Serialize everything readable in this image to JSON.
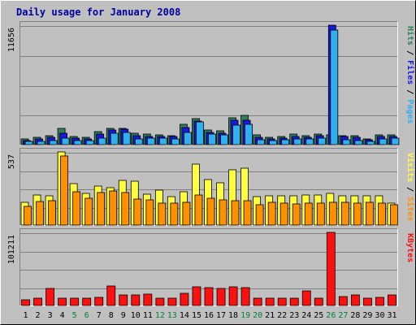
{
  "title": "Daily usage for January 2008",
  "colors": {
    "background": "#c0c0c0",
    "panel": "#c0c0c0",
    "title": "#0000a0",
    "hits": "#2f7f5f",
    "files": "#1818e0",
    "pages": "#30b0f0",
    "visits": "#ffff40",
    "sites": "#ff9000",
    "kbytes": "#ff1010",
    "weekend_label": "#008040",
    "weekday_label": "#000000"
  },
  "chart_data": [
    {
      "type": "bar",
      "panel": "hits-files-pages",
      "ymax_label": "11656",
      "ylim": [
        0,
        11656
      ],
      "legend": [
        {
          "name": "Pages",
          "color": "#30b0f0"
        },
        {
          "name": "Files",
          "color": "#1818e0"
        },
        {
          "name": "Hits",
          "color": "#2f7f5f"
        }
      ],
      "categories": [
        "1",
        "2",
        "3",
        "4",
        "5",
        "6",
        "7",
        "8",
        "9",
        "10",
        "11",
        "12",
        "13",
        "14",
        "15",
        "16",
        "17",
        "18",
        "19",
        "20",
        "21",
        "22",
        "23",
        "24",
        "25",
        "26",
        "27",
        "28",
        "29",
        "30",
        "31"
      ],
      "series": [
        {
          "name": "Hits",
          "values": [
            560,
            700,
            880,
            1560,
            770,
            740,
            1230,
            1590,
            1590,
            1120,
            1050,
            950,
            910,
            1950,
            2560,
            1450,
            1340,
            2650,
            2850,
            990,
            740,
            830,
            1050,
            900,
            1040,
            950,
            910,
            880,
            580,
            990,
            960
          ]
        },
        {
          "name": "Files",
          "values": [
            430,
            560,
            700,
            1100,
            620,
            560,
            1000,
            1390,
            1470,
            850,
            820,
            800,
            760,
            1650,
            2300,
            1200,
            1120,
            2400,
            2400,
            690,
            570,
            630,
            830,
            710,
            880,
            11656,
            800,
            700,
            500,
            820,
            800
          ]
        },
        {
          "name": "Pages",
          "values": [
            300,
            330,
            400,
            600,
            390,
            390,
            600,
            1100,
            1200,
            580,
            600,
            600,
            580,
            1200,
            2200,
            1050,
            930,
            1900,
            2000,
            500,
            400,
            500,
            580,
            530,
            640,
            11200,
            480,
            400,
            350,
            560,
            600
          ]
        }
      ]
    },
    {
      "type": "bar",
      "panel": "visits-sites",
      "ymax_label": "537",
      "ylim": [
        0,
        537
      ],
      "legend": [
        {
          "name": "Sites",
          "color": "#ff9000"
        },
        {
          "name": "Visits",
          "color": "#ffff40"
        }
      ],
      "categories": [
        "1",
        "2",
        "3",
        "4",
        "5",
        "6",
        "7",
        "8",
        "9",
        "10",
        "11",
        "12",
        "13",
        "14",
        "15",
        "16",
        "17",
        "18",
        "19",
        "20",
        "21",
        "22",
        "23",
        "24",
        "25",
        "26",
        "27",
        "28",
        "29",
        "30",
        "31"
      ],
      "series": [
        {
          "name": "Visits",
          "values": [
            168,
            219,
            212,
            537,
            306,
            232,
            287,
            272,
            328,
            320,
            224,
            255,
            207,
            242,
            445,
            337,
            308,
            408,
            418,
            208,
            212,
            213,
            212,
            219,
            219,
            231,
            215,
            215,
            216,
            212,
            164
          ]
        },
        {
          "name": "Sites",
          "values": [
            135,
            172,
            180,
            510,
            245,
            196,
            240,
            253,
            238,
            193,
            186,
            159,
            160,
            168,
            222,
            197,
            185,
            178,
            180,
            150,
            165,
            160,
            158,
            160,
            162,
            169,
            165,
            162,
            165,
            160,
            147
          ]
        }
      ]
    },
    {
      "type": "bar",
      "panel": "kbytes",
      "ymax_label": "101211",
      "ylim": [
        0,
        101211
      ],
      "legend": [
        {
          "name": "KBytes",
          "color": "#ff1010"
        }
      ],
      "categories": [
        "1",
        "2",
        "3",
        "4",
        "5",
        "6",
        "7",
        "8",
        "9",
        "10",
        "11",
        "12",
        "13",
        "14",
        "15",
        "16",
        "17",
        "18",
        "19",
        "20",
        "21",
        "22",
        "23",
        "24",
        "25",
        "26",
        "27",
        "28",
        "29",
        "30",
        "31"
      ],
      "series": [
        {
          "name": "KBytes",
          "values": [
            7800,
            10000,
            23500,
            10000,
            10000,
            10200,
            11400,
            26800,
            14800,
            14200,
            15900,
            10000,
            10200,
            17000,
            25400,
            24200,
            23500,
            25800,
            24400,
            10500,
            10500,
            10000,
            10000,
            19900,
            10000,
            101211,
            12000,
            15000,
            10500,
            11500,
            15000
          ]
        }
      ]
    }
  ]
}
